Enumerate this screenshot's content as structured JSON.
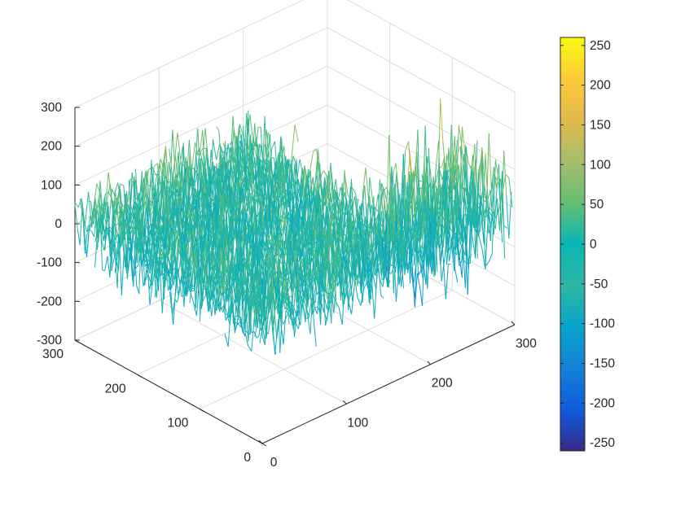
{
  "chart_data": {
    "type": "surface-mesh-3d",
    "title": "",
    "xlabel": "",
    "ylabel": "",
    "zlabel": "",
    "xlim": [
      0,
      300
    ],
    "ylim": [
      0,
      300
    ],
    "zlim": [
      -300,
      300
    ],
    "x_ticks": [
      "0",
      "100",
      "200",
      "300"
    ],
    "y_ticks": [
      "0",
      "100",
      "200",
      "300"
    ],
    "z_ticks": [
      "-300",
      "-200",
      "-100",
      "0",
      "100",
      "200",
      "300"
    ],
    "grid": true,
    "colormap": "parula",
    "colorbar": {
      "limits": [
        -260,
        260
      ],
      "ticks": [
        "-250",
        "-200",
        "-150",
        "-100",
        "-50",
        "0",
        "50",
        "100",
        "150",
        "200",
        "250"
      ],
      "position": "right"
    },
    "surface": {
      "description_free": true,
      "blocks": [
        {
          "x_range": [
            0,
            100
          ],
          "y_range": [
            0,
            300
          ],
          "z_mean": 0,
          "z_amplitude": 100
        },
        {
          "x_range": [
            100,
            200
          ],
          "y_range": [
            0,
            300
          ],
          "z_mean": 0,
          "z_amplitude": 100
        },
        {
          "x_range": [
            200,
            300
          ],
          "y_range": [
            0,
            100
          ],
          "z_mean": 0,
          "z_amplitude": 150
        },
        {
          "x_range": [
            100,
            200
          ],
          "y_range": [
            200,
            300
          ],
          "z_mean": 0,
          "z_amplitude": 60
        }
      ]
    }
  },
  "colors": {
    "axis": "#262626",
    "grid": "#dcdcdc",
    "background": "#ffffff"
  }
}
